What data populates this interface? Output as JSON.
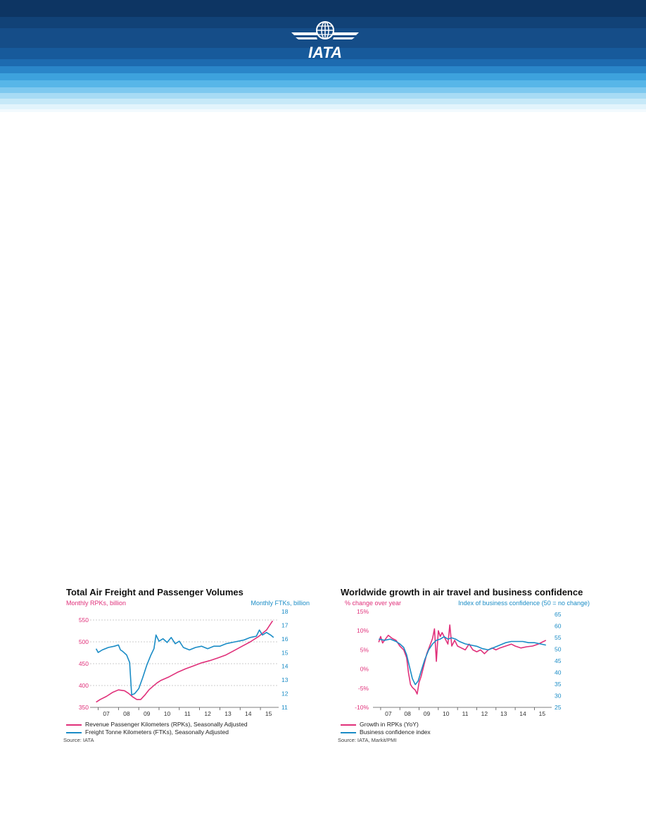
{
  "header": {
    "logo_text": "IATA",
    "colors": {
      "dark_navy": "#0e3a6c",
      "mid_blue": "#1d6bb0",
      "light_blue": "#6fc3ef",
      "pale_blue": "#cfeefb"
    }
  },
  "chart_data": [
    {
      "type": "line",
      "title": "Total Air Freight and Passenger Volumes",
      "y_left_label": "Monthly RPKs, billion",
      "y_right_label": "Monthly FTKs, billion",
      "x_ticks": [
        "07",
        "08",
        "09",
        "10",
        "11",
        "12",
        "13",
        "14",
        "15"
      ],
      "y_left_ticks": [
        "550",
        "500",
        "450",
        "400",
        "350"
      ],
      "y_right_ticks": [
        "18",
        "17",
        "16",
        "15",
        "14",
        "13",
        "12",
        "11"
      ],
      "ylim_left": [
        350,
        550
      ],
      "ylim_right": [
        11,
        18
      ],
      "grid": true,
      "legend_position": "bottom",
      "series": [
        {
          "name": "Revenue Passenger Kilometers (RPKs), Seasonally Adjusted",
          "axis": "left",
          "color": "#e0307a",
          "points": [
            [
              2006.9,
              362
            ],
            [
              2007.1,
              368
            ],
            [
              2007.4,
              375
            ],
            [
              2007.7,
              384
            ],
            [
              2008.0,
              390
            ],
            [
              2008.3,
              388
            ],
            [
              2008.5,
              382
            ],
            [
              2008.7,
              374
            ],
            [
              2008.9,
              368
            ],
            [
              2009.1,
              368
            ],
            [
              2009.3,
              378
            ],
            [
              2009.5,
              390
            ],
            [
              2009.7,
              398
            ],
            [
              2009.9,
              406
            ],
            [
              2010.1,
              412
            ],
            [
              2010.5,
              420
            ],
            [
              2010.9,
              430
            ],
            [
              2011.3,
              438
            ],
            [
              2011.7,
              445
            ],
            [
              2012.1,
              452
            ],
            [
              2012.5,
              457
            ],
            [
              2012.9,
              463
            ],
            [
              2013.3,
              470
            ],
            [
              2013.7,
              480
            ],
            [
              2014.1,
              490
            ],
            [
              2014.5,
              500
            ],
            [
              2014.9,
              512
            ],
            [
              2015.3,
              527
            ],
            [
              2015.6,
              548
            ]
          ]
        },
        {
          "name": "Freight Tonne Kilometers (FTKs), Seasonally Adjusted",
          "axis": "right",
          "color": "#1a8cc6",
          "points": [
            [
              2006.9,
              15.7
            ],
            [
              2007.0,
              15.4
            ],
            [
              2007.2,
              15.6
            ],
            [
              2007.5,
              15.8
            ],
            [
              2007.8,
              15.9
            ],
            [
              2008.0,
              16.0
            ],
            [
              2008.1,
              15.6
            ],
            [
              2008.2,
              15.5
            ],
            [
              2008.4,
              15.2
            ],
            [
              2008.55,
              14.6
            ],
            [
              2008.65,
              12.0
            ],
            [
              2008.8,
              12.1
            ],
            [
              2009.0,
              12.5
            ],
            [
              2009.2,
              13.4
            ],
            [
              2009.4,
              14.4
            ],
            [
              2009.6,
              15.2
            ],
            [
              2009.75,
              15.7
            ],
            [
              2009.85,
              16.8
            ],
            [
              2010.0,
              16.3
            ],
            [
              2010.2,
              16.5
            ],
            [
              2010.4,
              16.2
            ],
            [
              2010.6,
              16.6
            ],
            [
              2010.8,
              16.1
            ],
            [
              2011.0,
              16.3
            ],
            [
              2011.2,
              15.8
            ],
            [
              2011.5,
              15.6
            ],
            [
              2011.8,
              15.8
            ],
            [
              2012.1,
              15.9
            ],
            [
              2012.4,
              15.7
            ],
            [
              2012.7,
              15.9
            ],
            [
              2013.0,
              15.9
            ],
            [
              2013.3,
              16.1
            ],
            [
              2013.6,
              16.2
            ],
            [
              2013.9,
              16.3
            ],
            [
              2014.2,
              16.4
            ],
            [
              2014.5,
              16.6
            ],
            [
              2014.8,
              16.7
            ],
            [
              2014.95,
              17.2
            ],
            [
              2015.1,
              16.8
            ],
            [
              2015.3,
              17.0
            ],
            [
              2015.5,
              16.8
            ],
            [
              2015.65,
              16.6
            ]
          ]
        }
      ],
      "source": "Source: IATA"
    },
    {
      "type": "line",
      "title": "Worldwide growth in air travel and business confidence",
      "y_left_label": "% change over year",
      "y_right_label": "Index of business confidence (50 = no change)",
      "x_ticks": [
        "07",
        "08",
        "09",
        "10",
        "11",
        "12",
        "13",
        "14",
        "15"
      ],
      "y_left_ticks": [
        "15%",
        "10%",
        "5%",
        "0%",
        "-5%",
        "-10%"
      ],
      "y_right_ticks": [
        "65",
        "60",
        "55",
        "50",
        "45",
        "40",
        "35",
        "30",
        "25"
      ],
      "ylim_left": [
        -10,
        15
      ],
      "ylim_right": [
        25,
        65
      ],
      "grid": false,
      "legend_position": "bottom",
      "series": [
        {
          "name": "Growth in RPKs (YoY)",
          "axis": "left",
          "color": "#e0307a",
          "points": [
            [
              2006.9,
              7.0
            ],
            [
              2007.0,
              8.5
            ],
            [
              2007.1,
              6.8
            ],
            [
              2007.2,
              7.5
            ],
            [
              2007.4,
              8.8
            ],
            [
              2007.6,
              8.0
            ],
            [
              2007.8,
              7.5
            ],
            [
              2008.0,
              6.0
            ],
            [
              2008.2,
              5.0
            ],
            [
              2008.35,
              3.0
            ],
            [
              2008.45,
              -1.0
            ],
            [
              2008.55,
              -4.0
            ],
            [
              2008.65,
              -4.8
            ],
            [
              2008.8,
              -5.5
            ],
            [
              2008.9,
              -6.5
            ],
            [
              2009.0,
              -3.5
            ],
            [
              2009.1,
              -2.0
            ],
            [
              2009.25,
              1.0
            ],
            [
              2009.4,
              4.0
            ],
            [
              2009.55,
              6.0
            ],
            [
              2009.7,
              8.0
            ],
            [
              2009.8,
              10.5
            ],
            [
              2009.9,
              2.0
            ],
            [
              2010.0,
              10.0
            ],
            [
              2010.1,
              8.5
            ],
            [
              2010.2,
              9.5
            ],
            [
              2010.35,
              8.0
            ],
            [
              2010.5,
              6.5
            ],
            [
              2010.6,
              11.5
            ],
            [
              2010.7,
              6.0
            ],
            [
              2010.85,
              7.5
            ],
            [
              2011.0,
              6.0
            ],
            [
              2011.2,
              5.5
            ],
            [
              2011.4,
              5.0
            ],
            [
              2011.6,
              6.5
            ],
            [
              2011.8,
              5.0
            ],
            [
              2012.0,
              4.5
            ],
            [
              2012.2,
              5.0
            ],
            [
              2012.4,
              4.0
            ],
            [
              2012.6,
              5.0
            ],
            [
              2012.8,
              5.5
            ],
            [
              2013.0,
              5.0
            ],
            [
              2013.2,
              5.5
            ],
            [
              2013.5,
              6.0
            ],
            [
              2013.8,
              6.5
            ],
            [
              2014.0,
              6.0
            ],
            [
              2014.3,
              5.5
            ],
            [
              2014.6,
              5.8
            ],
            [
              2014.9,
              6.0
            ],
            [
              2015.2,
              6.5
            ],
            [
              2015.4,
              7.0
            ],
            [
              2015.6,
              7.5
            ]
          ]
        },
        {
          "name": "Business confidence index",
          "axis": "right",
          "color": "#1a8cc6",
          "points": [
            [
              2006.9,
              53.5
            ],
            [
              2007.2,
              53.0
            ],
            [
              2007.5,
              53.5
            ],
            [
              2007.8,
              52.5
            ],
            [
              2008.0,
              51.5
            ],
            [
              2008.2,
              50.0
            ],
            [
              2008.35,
              47.0
            ],
            [
              2008.5,
              42.0
            ],
            [
              2008.65,
              37.0
            ],
            [
              2008.8,
              34.5
            ],
            [
              2008.95,
              36.0
            ],
            [
              2009.1,
              40.0
            ],
            [
              2009.3,
              45.0
            ],
            [
              2009.5,
              49.0
            ],
            [
              2009.7,
              51.5
            ],
            [
              2009.9,
              53.0
            ],
            [
              2010.1,
              53.5
            ],
            [
              2010.3,
              54.5
            ],
            [
              2010.5,
              53.5
            ],
            [
              2010.7,
              54.0
            ],
            [
              2010.9,
              53.5
            ],
            [
              2011.1,
              52.5
            ],
            [
              2011.4,
              51.5
            ],
            [
              2011.7,
              51.0
            ],
            [
              2012.0,
              50.5
            ],
            [
              2012.3,
              49.5
            ],
            [
              2012.6,
              49.0
            ],
            [
              2012.9,
              50.0
            ],
            [
              2013.2,
              51.0
            ],
            [
              2013.5,
              52.0
            ],
            [
              2013.8,
              52.5
            ],
            [
              2014.1,
              52.5
            ],
            [
              2014.4,
              52.5
            ],
            [
              2014.7,
              52.0
            ],
            [
              2015.0,
              52.0
            ],
            [
              2015.3,
              51.5
            ],
            [
              2015.6,
              51.0
            ]
          ]
        }
      ],
      "source": "Source: IATA, Markit/PMI"
    }
  ]
}
